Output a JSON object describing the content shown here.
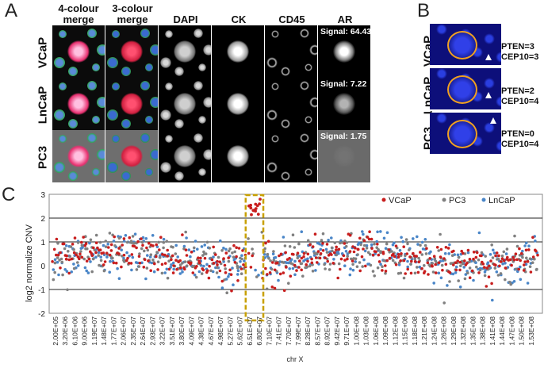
{
  "panels": {
    "a": "A",
    "b": "B",
    "c": "C"
  },
  "panel_a": {
    "columns": [
      "4-colour merge",
      "3-colour merge",
      "DAPI",
      "CK",
      "CD45",
      "AR"
    ],
    "rows": [
      {
        "label": "VCaP",
        "signal": "Signal: 64.43"
      },
      {
        "label": "LnCaP",
        "signal": "Signal: 7.22"
      },
      {
        "label": "PC3",
        "signal": "Signal: 1.75"
      }
    ]
  },
  "panel_b": {
    "rows": [
      {
        "label": "VCaP",
        "pten": "PTEN=3",
        "cep": "CEP10=3"
      },
      {
        "label": "LnCaP",
        "pten": "PTEN=2",
        "cep": "CEP10=4"
      },
      {
        "label": "PC3",
        "pten": "PTEN=0",
        "cep": "CEP10=4"
      }
    ]
  },
  "chart_data": {
    "type": "scatter",
    "title": "",
    "xlabel": "chr X",
    "ylabel": "log2 normalize CNV",
    "ylim": [
      -2,
      3
    ],
    "yticks": [
      -2,
      -1,
      0,
      1,
      2,
      3
    ],
    "grid": "horizontal lines at -1, 1 and 2",
    "legend": "top-right",
    "x_tick_labels": [
      "2.00E+05",
      "3.20E+06",
      "6.10E+06",
      "9.00E+06",
      "1.19E+07",
      "1.48E+07",
      "1.77E+07",
      "2.06E+07",
      "2.35E+07",
      "2.64E+07",
      "2.93E+07",
      "3.22E+07",
      "3.51E+07",
      "3.80E+07",
      "4.09E+07",
      "4.38E+07",
      "4.67E+07",
      "4.98E+07",
      "5.27E+07",
      "5.62E+07",
      "6.51E+07",
      "6.80E+07",
      "7.10E+07",
      "7.41E+07",
      "7.70E+07",
      "7.99E+07",
      "8.28E+07",
      "8.57E+07",
      "8.92E+07",
      "9.42E+07",
      "9.71E+07",
      "1.00E+08",
      "1.03E+08",
      "1.06E+08",
      "1.09E+08",
      "1.12E+08",
      "1.15E+08",
      "1.18E+08",
      "1.21E+08",
      "1.24E+08",
      "1.26E+08",
      "1.29E+08",
      "1.32E+08",
      "1.35E+08",
      "1.38E+08",
      "1.41E+08",
      "1.44E+08",
      "1.47E+08",
      "1.50E+08",
      "1.53E+08"
    ],
    "highlight": {
      "x_start": "6.51E+07",
      "x_end": "6.80E+07",
      "color": "#c8a000"
    },
    "series": [
      {
        "name": "VCaP",
        "color": "#c81e1e",
        "spread": 0.38,
        "amplification": [
          2.1,
          2.9
        ]
      },
      {
        "name": "PC3",
        "color": "#808080",
        "spread": 0.42
      },
      {
        "name": "LnCaP",
        "color": "#4a86c8",
        "spread": 0.45
      }
    ]
  }
}
